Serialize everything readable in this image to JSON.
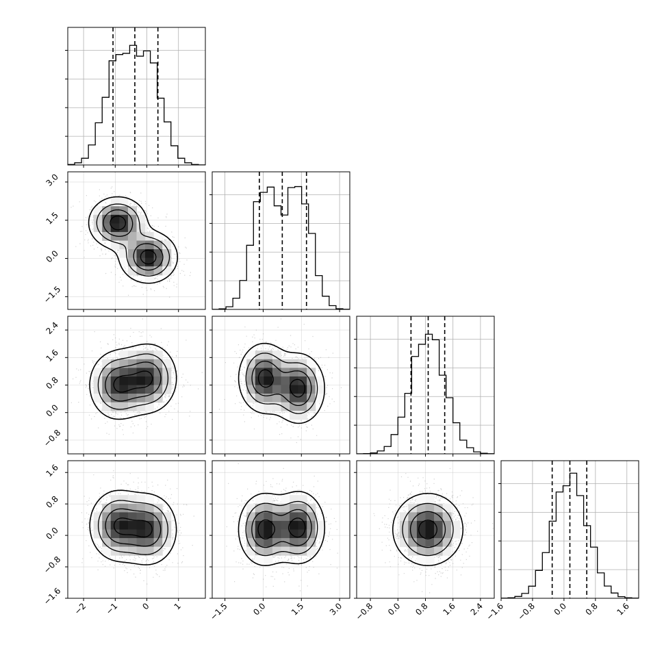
{
  "chart_data": {
    "type": "corner",
    "grid": true,
    "colors": {
      "line": "#000000",
      "grid": "#b0b0b0",
      "scatter": "#7a7a7a",
      "density_max": "#1a1a1a"
    },
    "params": [
      {
        "range": [
          -2.5,
          1.85
        ],
        "ticks": [
          "-2",
          "-1",
          "0",
          "1"
        ],
        "tick_values": [
          -2,
          -1,
          0,
          1
        ],
        "quantiles": [
          -1.07,
          -0.38,
          0.35
        ],
        "hist_scale": 1.15,
        "components": [
          {
            "mean": -0.92,
            "sd": 0.45,
            "weight": 0.5
          },
          {
            "mean": 0.05,
            "sd": 0.45,
            "weight": 0.5
          }
        ]
      },
      {
        "range": [
          -2.0,
          3.4
        ],
        "ticks": [
          "-1.5",
          "0.0",
          "1.5",
          "3.0"
        ],
        "tick_values": [
          -1.5,
          0.0,
          1.5,
          3.0
        ],
        "quantiles": [
          -0.15,
          0.75,
          1.7
        ],
        "hist_scale": 1.12,
        "components": [
          {
            "mean": 0.05,
            "sd": 0.5,
            "weight": 0.5
          },
          {
            "mean": 1.4,
            "sd": 0.5,
            "weight": 0.5
          }
        ]
      },
      {
        "range": [
          -1.2,
          2.8
        ],
        "ticks": [
          "-0.8",
          "0.0",
          "0.8",
          "1.6",
          "2.4"
        ],
        "tick_values": [
          -0.8,
          0.0,
          0.8,
          1.6,
          2.4
        ],
        "quantiles": [
          0.38,
          0.88,
          1.36
        ],
        "hist_scale": 1.15,
        "components": [
          {
            "mean": 0.87,
            "sd": 0.5,
            "weight": 1.0
          }
        ]
      },
      {
        "range": [
          -1.6,
          1.9
        ],
        "ticks": [
          "-1.6",
          "-0.8",
          "0.0",
          "0.8",
          "1.6"
        ],
        "tick_values": [
          -1.6,
          -0.8,
          0.0,
          0.8,
          1.6
        ],
        "quantiles": [
          -0.3,
          0.15,
          0.58
        ],
        "hist_scale": 1.1,
        "components": [
          {
            "mean": 0.15,
            "sd": 0.45,
            "weight": 1.0
          }
        ]
      }
    ],
    "pair_modes": [
      {
        "row": 1,
        "col": 0,
        "modes": [
          {
            "x": -0.92,
            "y": 1.4,
            "sx": 0.45,
            "sy": 0.5,
            "w": 0.5
          },
          {
            "x": 0.05,
            "y": 0.05,
            "sx": 0.45,
            "sy": 0.5,
            "w": 0.5
          }
        ]
      },
      {
        "row": 2,
        "col": 0,
        "modes": [
          {
            "x": -0.92,
            "y": 0.8,
            "sx": 0.45,
            "sy": 0.5,
            "w": 0.5
          },
          {
            "x": 0.05,
            "y": 1.0,
            "sx": 0.45,
            "sy": 0.5,
            "w": 0.5
          }
        ]
      },
      {
        "row": 2,
        "col": 1,
        "modes": [
          {
            "x": 0.05,
            "y": 1.0,
            "sx": 0.5,
            "sy": 0.5,
            "w": 0.5
          },
          {
            "x": 1.4,
            "y": 0.7,
            "sx": 0.5,
            "sy": 0.5,
            "w": 0.5
          }
        ]
      },
      {
        "row": 3,
        "col": 0,
        "modes": [
          {
            "x": -0.92,
            "y": 0.25,
            "sx": 0.45,
            "sy": 0.45,
            "w": 0.5
          },
          {
            "x": 0.05,
            "y": 0.15,
            "sx": 0.45,
            "sy": 0.45,
            "w": 0.5
          }
        ]
      },
      {
        "row": 3,
        "col": 1,
        "modes": [
          {
            "x": 0.05,
            "y": 0.15,
            "sx": 0.5,
            "sy": 0.45,
            "w": 0.5
          },
          {
            "x": 1.4,
            "y": 0.2,
            "sx": 0.5,
            "sy": 0.45,
            "w": 0.5
          }
        ]
      },
      {
        "row": 3,
        "col": 2,
        "modes": [
          {
            "x": 0.87,
            "y": 0.15,
            "sx": 0.5,
            "sy": 0.45,
            "w": 1.0
          }
        ]
      }
    ]
  }
}
